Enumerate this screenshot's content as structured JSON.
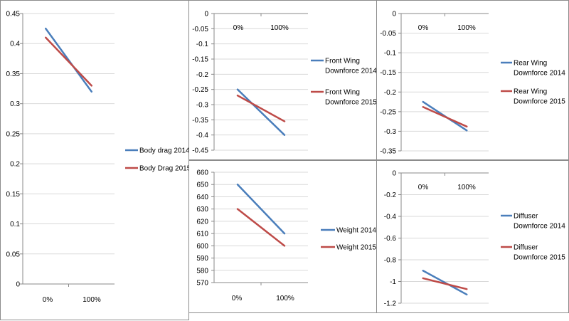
{
  "colors": {
    "series_2014": "#4a7ebb",
    "series_2015": "#be4b48",
    "grid": "#d9d9d9",
    "axis": "#888888"
  },
  "chart_data": [
    {
      "type": "line",
      "categories": [
        "0%",
        "100%"
      ],
      "yticks": [
        "0.45",
        "0.4",
        "0.35",
        "0.3",
        "0.25",
        "0.2",
        "0.15",
        "0.1",
        "0.05",
        "0"
      ],
      "ylim": [
        0,
        0.45
      ],
      "series": [
        {
          "name": "Body drag 2014",
          "values": [
            0.425,
            0.32
          ]
        },
        {
          "name": "Body Drag 2015",
          "values": [
            0.41,
            0.33
          ]
        }
      ]
    },
    {
      "type": "line",
      "categories": [
        "0%",
        "100%"
      ],
      "yticks": [
        "0",
        "-0.05",
        "-0.1",
        "-0.15",
        "-0.2",
        "-0.25",
        "-0.3",
        "-0.35",
        "-0.4",
        "-0.45"
      ],
      "ylim": [
        -0.45,
        0
      ],
      "series": [
        {
          "name": "Front Wing Downforce 2014",
          "values": [
            -0.25,
            -0.4
          ]
        },
        {
          "name": "Front Wing Downforce 2015",
          "values": [
            -0.27,
            -0.355
          ]
        }
      ]
    },
    {
      "type": "line",
      "categories": [
        "0%",
        "100%"
      ],
      "yticks": [
        "0",
        "-0.05",
        "-0.1",
        "-0.15",
        "-0.2",
        "-0.25",
        "-0.3",
        "-0.35"
      ],
      "ylim": [
        -0.35,
        0
      ],
      "series": [
        {
          "name": "Rear Wing Downforce 2014",
          "values": [
            -0.225,
            -0.298
          ]
        },
        {
          "name": "Rear Wing Downforce 2015",
          "values": [
            -0.238,
            -0.288
          ]
        }
      ]
    },
    {
      "type": "line",
      "categories": [
        "0%",
        "100%"
      ],
      "yticks": [
        "660",
        "650",
        "640",
        "630",
        "620",
        "610",
        "600",
        "590",
        "580",
        "570"
      ],
      "ylim": [
        570,
        660
      ],
      "series": [
        {
          "name": "Weight 2014",
          "values": [
            650,
            610
          ]
        },
        {
          "name": "Weight 2015",
          "values": [
            630,
            600
          ]
        }
      ]
    },
    {
      "type": "line",
      "categories": [
        "0%",
        "100%"
      ],
      "yticks": [
        "0",
        "-0.2",
        "-0.4",
        "-0.6",
        "-0.8",
        "-1",
        "-1.2"
      ],
      "ylim": [
        -1.2,
        0
      ],
      "series": [
        {
          "name": "Diffuser Downforce 2014",
          "values": [
            -0.9,
            -1.12
          ]
        },
        {
          "name": "Diffuser Downforce 2015",
          "values": [
            -0.97,
            -1.07
          ]
        }
      ]
    }
  ]
}
